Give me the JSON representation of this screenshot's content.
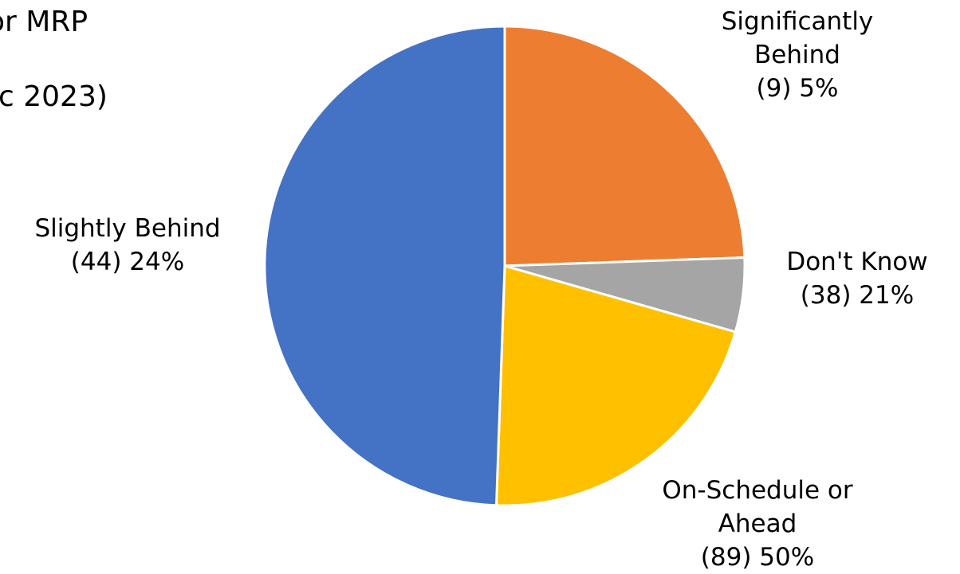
{
  "title_fragments": [
    "or MRP",
    "c 2023)"
  ],
  "chart_data": {
    "type": "pie",
    "start_angle_deg": 0,
    "direction": "clockwise",
    "slices": [
      {
        "category": "Slightly Behind",
        "count": "(44)",
        "percent": "24%",
        "value": 44,
        "color": "#ED7D31",
        "label_lines": [
          "Slightly Behind",
          "(44) 24%"
        ]
      },
      {
        "category": "Significantly Behind",
        "count": "(9)",
        "percent": "5%",
        "value": 9,
        "color": "#A5A5A5",
        "label_lines": [
          "Significantly",
          "Behind",
          "(9) 5%"
        ]
      },
      {
        "category": "Don't Know",
        "count": "(38)",
        "percent": "21%",
        "value": 38,
        "color": "#FFC000",
        "label_lines": [
          "Don't Know",
          "(38) 21%"
        ]
      },
      {
        "category": "On-Schedule or Ahead",
        "count": "(89)",
        "percent": "50%",
        "value": 89,
        "color": "#4472C4",
        "label_lines": [
          "On-Schedule or",
          "Ahead",
          "(89)  50%"
        ]
      }
    ]
  }
}
